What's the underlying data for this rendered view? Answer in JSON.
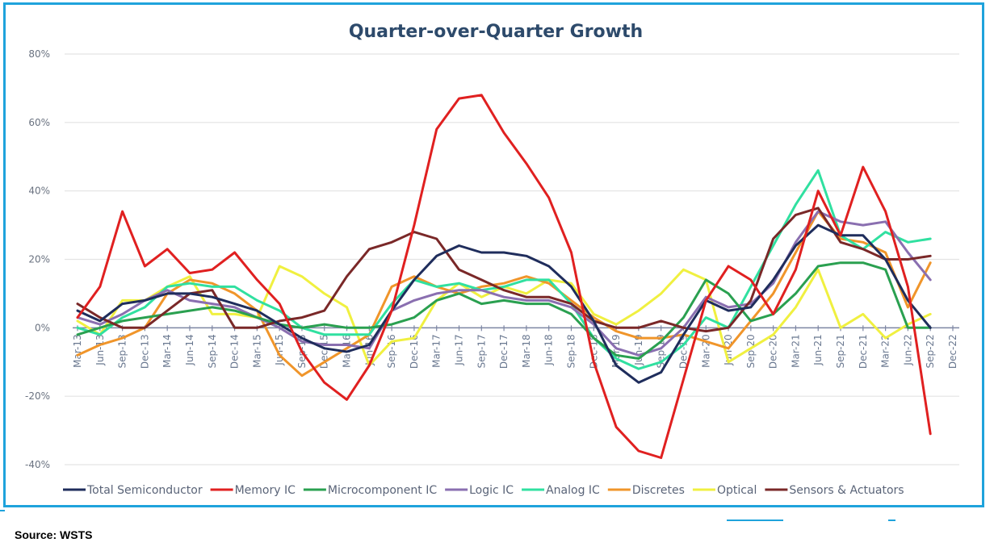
{
  "source_note": "Source: WSTS",
  "chart_data": {
    "type": "line",
    "title": "Quarter-over-Quarter Growth",
    "xlabel": "",
    "ylabel": "",
    "ylim": [
      -40,
      80
    ],
    "yticks": [
      80,
      60,
      40,
      20,
      0,
      -20,
      -40
    ],
    "ytick_labels": [
      "80%",
      "60%",
      "40%",
      "20%",
      "0%",
      "-20%",
      "-40%"
    ],
    "grid": "horizontal",
    "legend_position": "bottom",
    "categories": [
      "Mar-13",
      "Jun-13",
      "Sep-13",
      "Dec-13",
      "Mar-14",
      "Jun-14",
      "Sep-14",
      "Dec-14",
      "Mar-15",
      "Jun-15",
      "Sep-15",
      "Dec-15",
      "Mar-16",
      "Jun-16",
      "Sep-16",
      "Dec-16",
      "Mar-17",
      "Jun-17",
      "Sep-17",
      "Dec-17",
      "Mar-18",
      "Jun-18",
      "Sep-18",
      "Dec-18",
      "Mar-19",
      "Jun-19",
      "Sep-19",
      "Dec-19",
      "Mar-20",
      "Jun-20",
      "Sep-20",
      "Dec-20",
      "Mar-21",
      "Jun-21",
      "Sep-21",
      "Dec-21",
      "Mar-22",
      "Jun-22",
      "Sep-22",
      "Dec-22"
    ],
    "series": [
      {
        "name": "Total Semiconductor",
        "color": "#1f2d5c",
        "values": [
          5,
          2,
          7,
          8,
          10,
          10,
          9,
          7,
          5,
          1,
          -3,
          -6,
          -7,
          -5,
          5,
          14,
          21,
          24,
          22,
          22,
          21,
          18,
          12,
          2,
          -11,
          -16,
          -13,
          -2,
          8,
          5,
          6,
          14,
          24,
          30,
          27,
          27,
          20,
          8,
          0,
          null
        ]
      },
      {
        "name": "Memory IC",
        "color": "#e02020",
        "values": [
          3,
          12,
          34,
          18,
          23,
          16,
          17,
          22,
          14,
          7,
          -7,
          -16,
          -21,
          -11,
          5,
          30,
          58,
          67,
          68,
          57,
          48,
          38,
          22,
          -10,
          -29,
          -36,
          -38,
          -15,
          8,
          18,
          14,
          4,
          17,
          40,
          27,
          47,
          34,
          12,
          -31,
          null
        ]
      },
      {
        "name": "Microcomponent IC",
        "color": "#2aa050",
        "values": [
          -2,
          0,
          2,
          3,
          4,
          5,
          6,
          5,
          3,
          1,
          0,
          1,
          0,
          0,
          1,
          3,
          8,
          10,
          7,
          8,
          7,
          7,
          4,
          -3,
          -8,
          -9,
          -4,
          3,
          14,
          10,
          2,
          4,
          10,
          18,
          19,
          19,
          17,
          0,
          0,
          null
        ]
      },
      {
        "name": "Logic IC",
        "color": "#8a6fb0",
        "values": [
          3,
          1,
          4,
          8,
          11,
          8,
          7,
          6,
          3,
          0,
          -4,
          -5,
          -5,
          -6,
          5,
          8,
          10,
          11,
          11,
          9,
          8,
          8,
          6,
          1,
          -6,
          -8,
          -6,
          0,
          9,
          6,
          7,
          13,
          25,
          34,
          31,
          30,
          31,
          22,
          14,
          null
        ]
      },
      {
        "name": "Analog IC",
        "color": "#30e0a0",
        "values": [
          0,
          -2,
          3,
          6,
          12,
          13,
          12,
          12,
          8,
          5,
          0,
          -2,
          -2,
          -2,
          7,
          14,
          12,
          13,
          11,
          12,
          14,
          14,
          7,
          -3,
          -9,
          -12,
          -10,
          -5,
          3,
          0,
          12,
          24,
          36,
          46,
          27,
          23,
          28,
          25,
          26,
          null
        ]
      },
      {
        "name": "Discretes",
        "color": "#f0952a",
        "values": [
          -8,
          -5,
          -3,
          0,
          10,
          14,
          13,
          10,
          5,
          -8,
          -14,
          -10,
          -6,
          -2,
          12,
          15,
          12,
          10,
          12,
          13,
          15,
          13,
          8,
          3,
          -1,
          -3,
          -3,
          -2,
          -4,
          -6,
          2,
          10,
          22,
          34,
          26,
          25,
          22,
          6,
          19,
          null
        ]
      },
      {
        "name": "Optical",
        "color": "#f0f040",
        "values": [
          2,
          -2,
          8,
          8,
          12,
          15,
          4,
          4,
          3,
          18,
          15,
          10,
          6,
          -11,
          -4,
          -3,
          8,
          13,
          9,
          12,
          10,
          14,
          13,
          4,
          1,
          5,
          10,
          17,
          14,
          -10,
          -6,
          -2,
          6,
          17,
          0,
          4,
          -3,
          1,
          4,
          null
        ]
      },
      {
        "name": "Sensors & Actuators",
        "color": "#7a2828",
        "values": [
          7,
          3,
          0,
          0,
          5,
          10,
          11,
          0,
          0,
          2,
          3,
          5,
          15,
          23,
          25,
          28,
          26,
          17,
          14,
          11,
          9,
          9,
          7,
          2,
          0,
          0,
          2,
          0,
          -1,
          0,
          8,
          26,
          33,
          35,
          25,
          23,
          20,
          20,
          21,
          null
        ]
      }
    ]
  }
}
